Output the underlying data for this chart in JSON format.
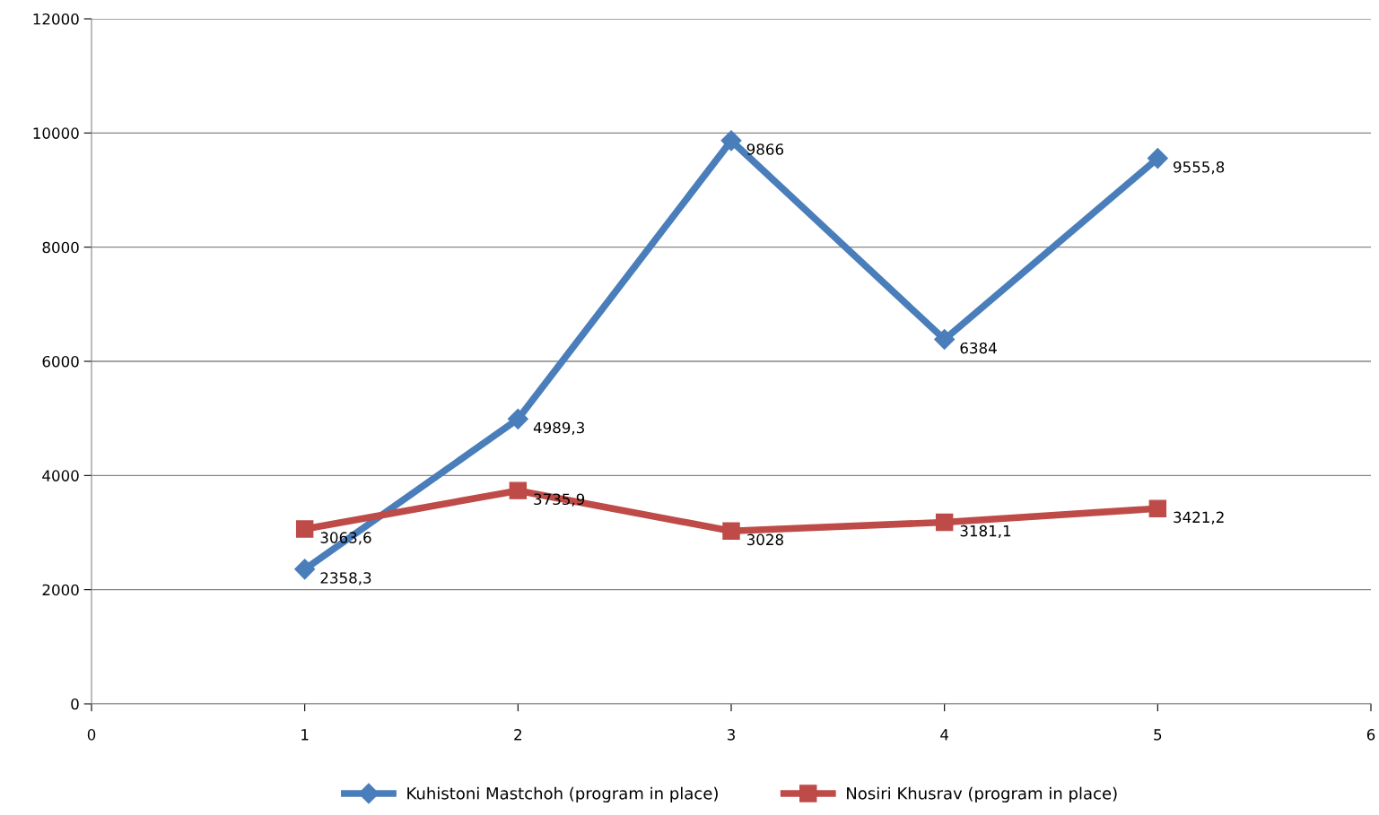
{
  "chart_data": {
    "type": "line",
    "x": [
      1,
      2,
      3,
      4,
      5
    ],
    "series": [
      {
        "name": "Kuhistoni Mastchoh (program in place)",
        "color": "#4a7ebb",
        "marker": "diamond",
        "values": [
          2358.3,
          4989.3,
          9866,
          6384,
          9555.8
        ],
        "value_labels": [
          "2358,3",
          "4989,3",
          "9866",
          "6384",
          "9555,8"
        ]
      },
      {
        "name": "Nosiri Khusrav (program in place)",
        "color": "#be4b48",
        "marker": "square",
        "values": [
          3063.6,
          3735.9,
          3028,
          3181.1,
          3421.2
        ],
        "value_labels": [
          "3063,6",
          "3735,9",
          "3028",
          "3181,1",
          "3421,2"
        ]
      }
    ],
    "xlim": [
      0,
      6
    ],
    "xticks": [
      0,
      1,
      2,
      3,
      4,
      5,
      6
    ],
    "ylim": [
      0,
      12000
    ],
    "yticks": [
      0,
      2000,
      4000,
      6000,
      8000,
      10000,
      12000
    ],
    "grid": "y",
    "legend": "bottom",
    "line_style": "solid"
  }
}
